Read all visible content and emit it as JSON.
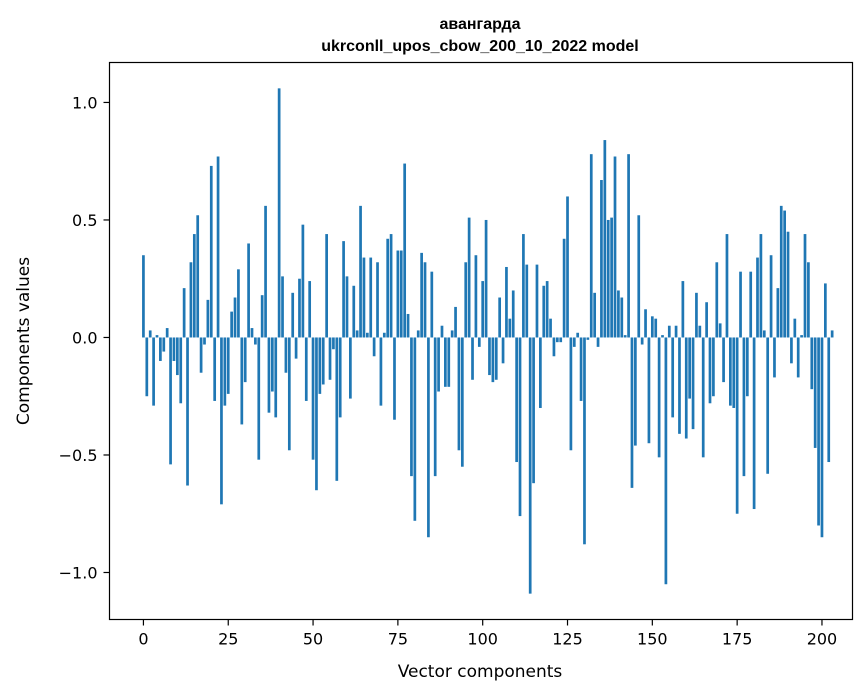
{
  "chart_data": {
    "type": "bar",
    "title_line1": "авангарда",
    "title_line2": "ukrconll_upos_cbow_200_10_2022 model",
    "xlabel": "Vector components",
    "ylabel": "Components values",
    "xlim": [
      -10,
      209
    ],
    "ylim": [
      -1.2,
      1.17
    ],
    "xticks": [
      0,
      25,
      50,
      75,
      100,
      125,
      150,
      175,
      200
    ],
    "xtick_labels": [
      "0",
      "25",
      "50",
      "75",
      "100",
      "125",
      "150",
      "175",
      "200"
    ],
    "yticks": [
      1.0,
      0.5,
      0.0,
      -0.5,
      -1.0
    ],
    "ytick_labels": [
      "1.0",
      "0.5",
      "0.0",
      "−0.5",
      "−1.0"
    ],
    "bar_color": "#1f77b4",
    "values": [
      0.35,
      -0.25,
      0.03,
      -0.29,
      0.01,
      -0.1,
      -0.06,
      0.04,
      -0.54,
      -0.1,
      -0.16,
      -0.28,
      0.21,
      -0.63,
      0.32,
      0.44,
      0.52,
      -0.15,
      -0.03,
      0.16,
      0.73,
      -0.27,
      0.77,
      -0.71,
      -0.29,
      -0.24,
      0.11,
      0.17,
      0.29,
      -0.37,
      -0.19,
      0.4,
      0.04,
      -0.03,
      -0.52,
      0.18,
      0.56,
      -0.32,
      -0.23,
      -0.34,
      1.06,
      0.26,
      -0.15,
      -0.48,
      0.19,
      -0.09,
      0.25,
      0.48,
      -0.27,
      0.24,
      -0.52,
      -0.65,
      -0.24,
      -0.2,
      0.44,
      -0.18,
      -0.05,
      -0.61,
      -0.34,
      0.41,
      0.26,
      -0.26,
      0.22,
      0.03,
      0.56,
      0.34,
      0.02,
      0.34,
      -0.08,
      0.32,
      -0.29,
      0.02,
      0.42,
      0.44,
      -0.35,
      0.37,
      0.37,
      0.74,
      0.1,
      -0.59,
      -0.78,
      0.03,
      0.36,
      0.32,
      -0.85,
      0.28,
      -0.59,
      -0.23,
      0.05,
      -0.21,
      -0.21,
      0.03,
      0.13,
      -0.48,
      -0.55,
      0.32,
      0.51,
      -0.18,
      0.35,
      -0.04,
      0.24,
      0.5,
      -0.16,
      -0.19,
      -0.18,
      0.17,
      -0.11,
      0.3,
      0.08,
      0.2,
      -0.53,
      -0.76,
      0.44,
      0.31,
      -1.09,
      -0.62,
      0.31,
      -0.3,
      0.22,
      0.24,
      0.08,
      -0.08,
      -0.02,
      -0.02,
      0.42,
      0.6,
      -0.48,
      -0.04,
      0.02,
      -0.27,
      -0.88,
      -0.01,
      0.78,
      0.19,
      -0.04,
      0.67,
      0.84,
      0.5,
      0.51,
      0.77,
      0.2,
      0.17,
      0.01,
      0.78,
      -0.64,
      -0.46,
      0.52,
      -0.03,
      0.12,
      -0.45,
      0.09,
      0.08,
      -0.51,
      0.01,
      -1.05,
      0.05,
      -0.34,
      0.05,
      -0.41,
      0.24,
      -0.43,
      -0.26,
      -0.39,
      0.19,
      0.05,
      -0.51,
      0.15,
      -0.28,
      -0.25,
      0.32,
      0.06,
      -0.19,
      0.44,
      -0.29,
      -0.3,
      -0.75,
      0.28,
      -0.59,
      -0.25,
      0.28,
      -0.73,
      0.34,
      0.44,
      0.03,
      -0.58,
      0.35,
      -0.17,
      0.21,
      0.56,
      0.54,
      0.45,
      -0.11,
      0.08,
      -0.17,
      0.01,
      0.44,
      0.32,
      -0.22,
      -0.47,
      -0.8,
      -0.85,
      0.23,
      -0.53,
      0.03
    ]
  }
}
